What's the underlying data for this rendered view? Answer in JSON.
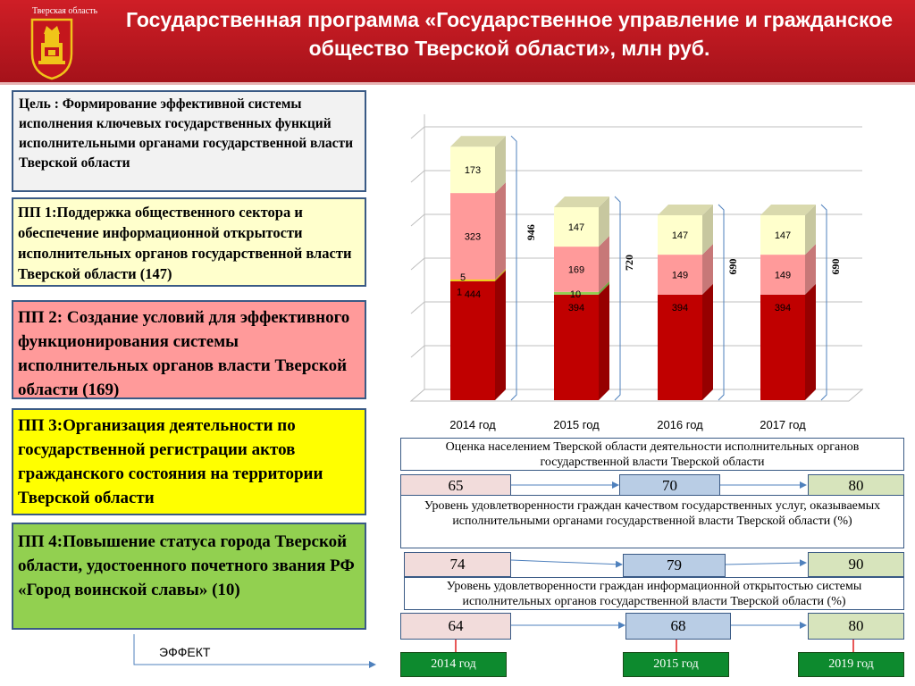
{
  "header": {
    "region": "Тверская область",
    "title": "Государственная программа «Государственное управление и гражданское общество Тверской области», млн руб."
  },
  "goal": {
    "text": "Цель : Формирование эффективной системы исполнения ключевых государственных функций исполнительными органами государственной власти Тверской области"
  },
  "subprograms": [
    {
      "text": "ПП 1:Поддержка общественного сектора и обеспечение информационной открытости исполнительных органов государственной власти Тверской области (147)",
      "color": "#ffffcc"
    },
    {
      "text": "ПП 2: Создание условий для эффективного функционирования системы исполнительных  органов власти Тверской области (169)",
      "color": "#ff9a9a"
    },
    {
      "text": "ПП 3:Организация деятельности по государственной регистрации актов гражданского состояния на территории Тверской области",
      "color": "#ffff00"
    },
    {
      "text": "ПП 4:Повышение статуса города Тверской области, удостоенного почетного звания РФ «Город воинской славы» (10)",
      "color": "#92d050"
    }
  ],
  "effect_label": "ЭФФЕКТ",
  "chart_data": {
    "type": "bar",
    "stacked": true,
    "categories": [
      "2014 год",
      "2015 год",
      "2016 год",
      "2017 год"
    ],
    "series": [
      {
        "values": [
          444,
          394,
          394,
          394
        ],
        "labels": [
          "444",
          "394",
          "394",
          "394"
        ],
        "color": "#c00000"
      },
      {
        "values": [
          1,
          10,
          0,
          0
        ],
        "labels": [
          "1",
          "10",
          "",
          ""
        ],
        "color": "#92d050"
      },
      {
        "values": [
          5,
          0,
          0,
          0
        ],
        "labels": [
          "5",
          "",
          "",
          ""
        ],
        "color": "#ffd700"
      },
      {
        "values": [
          323,
          169,
          149,
          149
        ],
        "labels": [
          "323",
          "169",
          "149",
          "149"
        ],
        "color": "#ff9a9a"
      },
      {
        "values": [
          173,
          147,
          147,
          147
        ],
        "labels": [
          "173",
          "147",
          "147",
          "147"
        ],
        "color": "#ffffcc"
      }
    ],
    "totals": [
      "946",
      "720",
      "690",
      "690"
    ],
    "ylim": [
      0,
      1000
    ],
    "grid": true
  },
  "indicators": [
    {
      "title": "Оценка населением Тверской области деятельности исполнительных органов государственной власти Тверской области",
      "values": [
        "65",
        "70",
        "80"
      ]
    },
    {
      "title": "Уровень удовлетворенности граждан качеством государственных услуг, оказываемых исполнительными органами государственной власти Тверской области (%)",
      "values": [
        "74",
        "79",
        "90"
      ]
    },
    {
      "title": "Уровень удовлетворенности граждан информационной открытостью системы исполнительных органов государственной власти Тверской области (%)",
      "values": [
        "64",
        "68",
        "80"
      ]
    }
  ],
  "years": [
    "2014 год",
    "2015 год",
    "2019 год"
  ]
}
